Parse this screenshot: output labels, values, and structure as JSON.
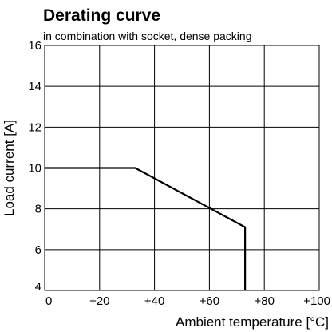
{
  "chart_data": {
    "type": "line",
    "title": "Derating curve",
    "subtitle": "in combination with socket, dense packing",
    "xlabel": "Ambient temperature [°C]",
    "ylabel": "Load current [A]",
    "xlim": [
      0,
      100
    ],
    "ylim": [
      4,
      16
    ],
    "x_ticks": [
      0,
      20,
      40,
      60,
      80,
      100
    ],
    "x_tick_labels": [
      "0",
      "+20",
      "+40",
      "+60",
      "+80",
      "+100"
    ],
    "y_ticks": [
      4,
      6,
      8,
      10,
      12,
      14,
      16
    ],
    "y_tick_labels": [
      "4",
      "6",
      "8",
      "10",
      "12",
      "14",
      "16"
    ],
    "grid": true,
    "series": [
      {
        "x": [
          0,
          33,
          73,
          73
        ],
        "y": [
          10,
          10,
          7.1,
          4
        ]
      }
    ],
    "colors": {
      "line": "#000000",
      "grid": "#000000",
      "background": "#ffffff"
    }
  }
}
